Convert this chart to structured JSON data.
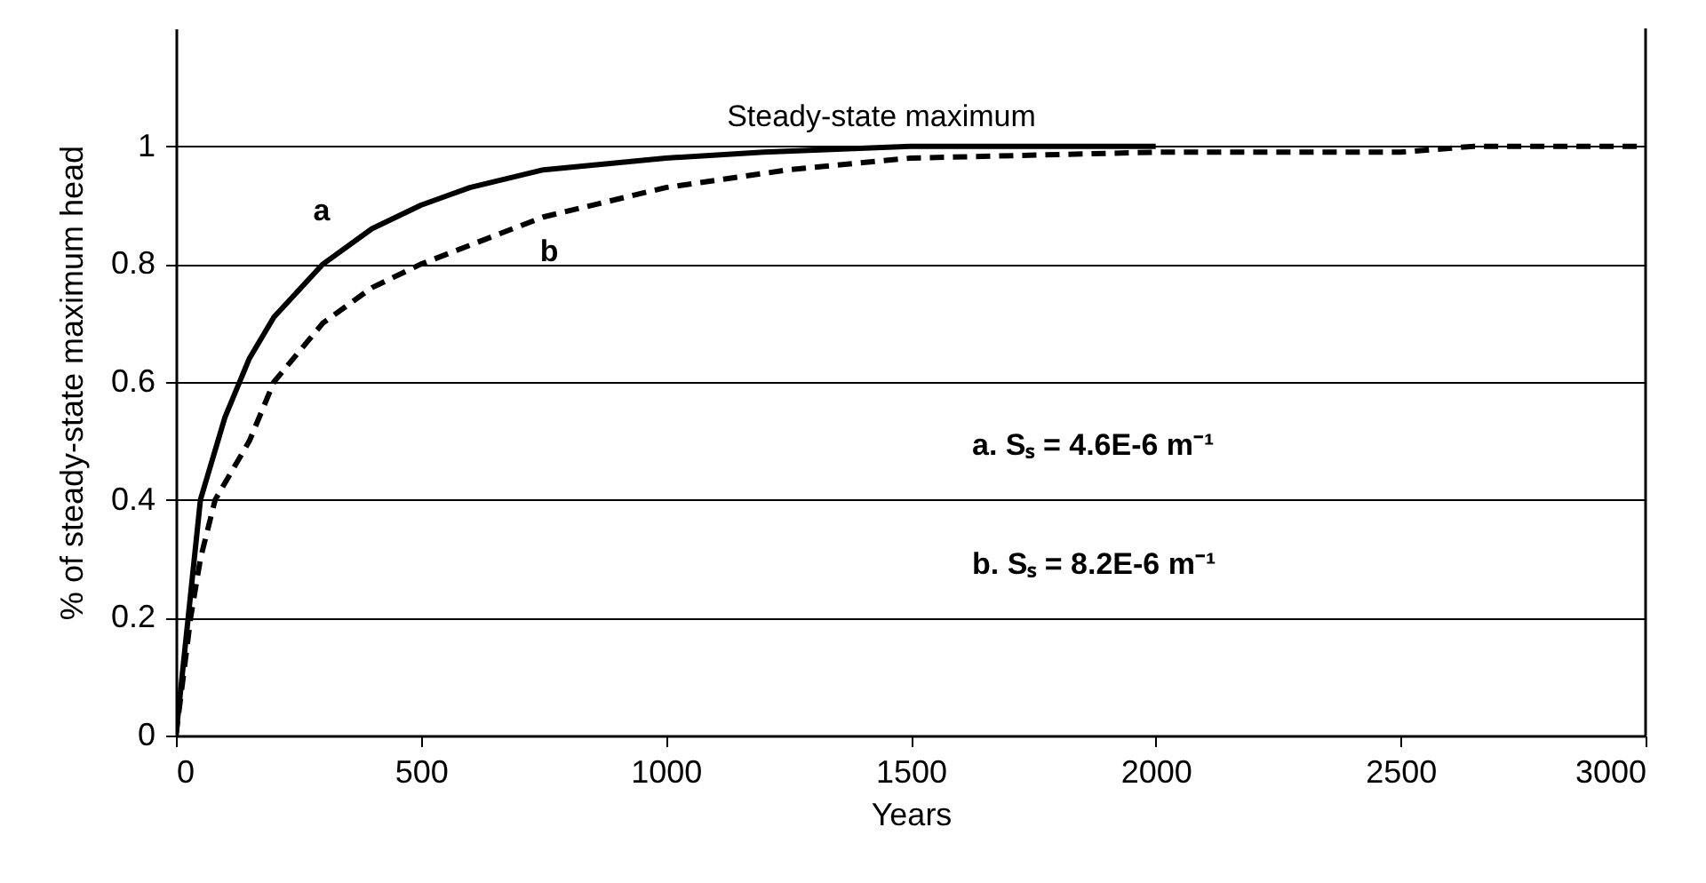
{
  "chart_data": {
    "type": "line",
    "xlabel": "Years",
    "ylabel": "% of steady-state maximum head",
    "xlim": [
      0,
      3000
    ],
    "xticks": [
      0,
      500,
      1000,
      1500,
      2000,
      2500,
      3000
    ],
    "ylim": [
      0,
      1.2
    ],
    "yticks": [
      0,
      0.2,
      0.4,
      0.6,
      0.8,
      1
    ],
    "grid": "y",
    "marker": "none",
    "series": [
      {
        "color": "#000000",
        "line_style": "solid",
        "x": [
          0,
          25,
          50,
          100,
          150,
          200,
          300,
          400,
          500,
          600,
          750,
          1000,
          1200,
          1500,
          2000
        ],
        "values": [
          0,
          0.2,
          0.4,
          0.54,
          0.64,
          0.71,
          0.8,
          0.86,
          0.9,
          0.93,
          0.96,
          0.98,
          0.99,
          1,
          1
        ]
      },
      {
        "color": "#000000",
        "line_style": "dashed",
        "x": [
          0,
          30,
          50,
          80,
          150,
          200,
          300,
          400,
          500,
          750,
          1000,
          1250,
          1500,
          2000,
          2500,
          2650,
          3000
        ],
        "values": [
          0,
          0.2,
          0.3,
          0.4,
          0.5,
          0.6,
          0.7,
          0.76,
          0.8,
          0.88,
          0.93,
          0.96,
          0.98,
          0.99,
          0.99,
          1,
          1
        ]
      }
    ],
    "annotations": [
      "a",
      "b",
      "Steady-state maximum",
      "a. Sₛ = 4.6E-6 m⁻¹",
      "b. Sₛ = 8.2E-6 m⁻¹"
    ]
  }
}
